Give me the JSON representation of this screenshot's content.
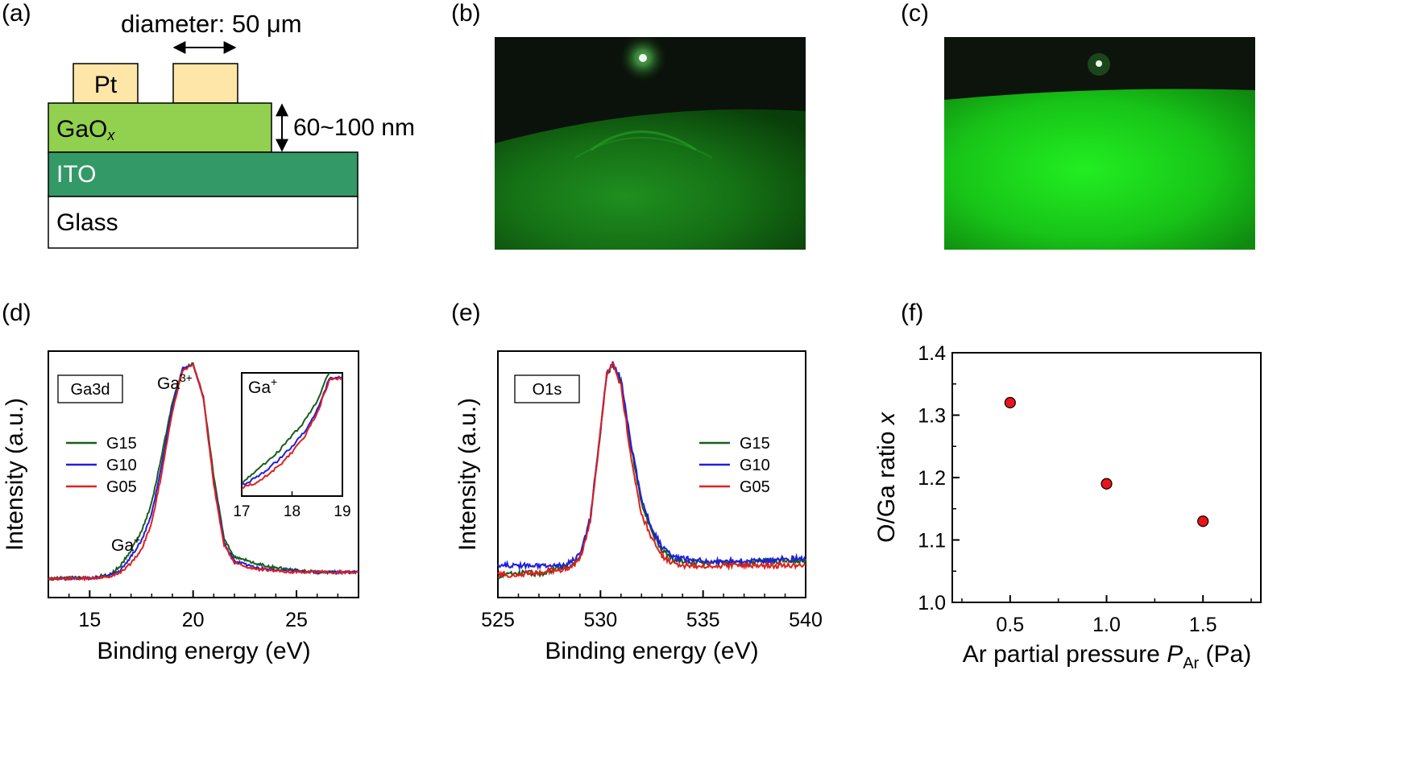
{
  "panel_labels": {
    "a": "(a)",
    "b": "(b)",
    "c": "(c)",
    "d": "(d)",
    "e": "(e)",
    "f": "(f)"
  },
  "schematic": {
    "diameter_label": "diameter: 50 μm",
    "thickness_label": "60~100 nm",
    "layers": {
      "pt": "Pt",
      "gaox_main": "GaO",
      "gaox_sub": "x",
      "ito": "ITO",
      "glass": "Glass"
    },
    "colors": {
      "pt": "#fde6a8",
      "gaox": "#92d050",
      "ito": "#339966",
      "glass": "#ffffff"
    }
  },
  "rheed_images": [
    {
      "panel": "b",
      "style": "dim green diffraction pattern with arcs"
    },
    {
      "panel": "c",
      "style": "bright green diffraction pattern"
    }
  ],
  "chart_data": [
    {
      "panel": "d",
      "type": "line",
      "xlabel": "Binding energy (eV)",
      "ylabel": "Intensity (a.u.)",
      "xlim": [
        13,
        28
      ],
      "xticks": [
        15,
        20,
        25
      ],
      "ylim": [
        0,
        1.1
      ],
      "box_label": "Ga3d",
      "annotations": [
        {
          "main": "Ga",
          "sup": "3+",
          "x": 19.6,
          "y": 1.05
        },
        {
          "main": "Ga",
          "sup": "+",
          "x": 17.5,
          "y": 0.32
        }
      ],
      "series": [
        {
          "name": "G15",
          "color": "#1a5e1a",
          "x": [
            13,
            14,
            15,
            16,
            16.5,
            17,
            17.5,
            18,
            18.5,
            19,
            19.5,
            20,
            20.5,
            21,
            21.5,
            22,
            23,
            24,
            25,
            26,
            27,
            28
          ],
          "y": [
            0.04,
            0.045,
            0.045,
            0.06,
            0.1,
            0.17,
            0.25,
            0.38,
            0.6,
            0.83,
            0.98,
            1.0,
            0.85,
            0.5,
            0.22,
            0.14,
            0.11,
            0.09,
            0.08,
            0.07,
            0.07,
            0.07
          ]
        },
        {
          "name": "G10",
          "color": "#1f1fdd",
          "x": [
            13,
            14,
            15,
            16,
            16.5,
            17,
            17.5,
            18,
            18.5,
            19,
            19.5,
            20,
            20.5,
            21,
            21.5,
            22,
            23,
            24,
            25,
            26,
            27,
            28
          ],
          "y": [
            0.04,
            0.042,
            0.043,
            0.055,
            0.08,
            0.14,
            0.21,
            0.33,
            0.56,
            0.81,
            0.98,
            1.0,
            0.85,
            0.47,
            0.2,
            0.12,
            0.09,
            0.08,
            0.075,
            0.07,
            0.07,
            0.07
          ]
        },
        {
          "name": "G05",
          "color": "#e0201c",
          "x": [
            13,
            14,
            15,
            16,
            16.5,
            17,
            17.5,
            18,
            18.5,
            19,
            19.5,
            20,
            20.5,
            21,
            21.5,
            22,
            23,
            24,
            25,
            26,
            27,
            28
          ],
          "y": [
            0.04,
            0.042,
            0.042,
            0.05,
            0.07,
            0.11,
            0.17,
            0.29,
            0.52,
            0.79,
            0.97,
            1.0,
            0.85,
            0.46,
            0.19,
            0.11,
            0.085,
            0.075,
            0.07,
            0.07,
            0.07,
            0.07
          ]
        }
      ],
      "inset": {
        "title_main": "Ga",
        "title_sup": "+",
        "xlim": [
          17,
          19
        ],
        "xticks": [
          17,
          18,
          19
        ],
        "ylim": [
          0,
          1
        ],
        "series": [
          {
            "name": "G15",
            "x": [
              17,
              17.25,
              17.5,
              17.75,
              18,
              18.25,
              18.5,
              18.75
            ],
            "y": [
              0.05,
              0.13,
              0.23,
              0.33,
              0.45,
              0.58,
              0.76,
              1.02
            ]
          },
          {
            "name": "G10",
            "x": [
              17,
              17.25,
              17.5,
              17.75,
              18,
              18.25,
              18.5,
              18.75
            ],
            "y": [
              0.02,
              0.08,
              0.16,
              0.25,
              0.36,
              0.49,
              0.68,
              0.96
            ]
          },
          {
            "name": "G05",
            "x": [
              17,
              17.25,
              17.5,
              17.75,
              18,
              18.25,
              18.5,
              18.75
            ],
            "y": [
              0.0,
              0.04,
              0.11,
              0.2,
              0.31,
              0.45,
              0.65,
              0.95
            ]
          }
        ]
      }
    },
    {
      "panel": "e",
      "type": "line",
      "xlabel": "Binding energy (eV)",
      "ylabel": "Intensity (a.u.)",
      "xlim": [
        525,
        540
      ],
      "xticks": [
        525,
        530,
        535,
        540
      ],
      "ylim": [
        0,
        1.1
      ],
      "box_label": "O1s",
      "series": [
        {
          "name": "G15",
          "color": "#1a5e1a",
          "x": [
            525,
            526,
            527,
            528,
            528.5,
            529,
            529.5,
            530,
            530.3,
            530.6,
            531,
            531.5,
            532,
            532.5,
            533,
            533.5,
            534,
            535,
            536,
            537,
            538,
            539,
            540
          ],
          "y": [
            0.05,
            0.07,
            0.06,
            0.09,
            0.1,
            0.14,
            0.3,
            0.7,
            0.95,
            1.0,
            0.92,
            0.62,
            0.38,
            0.25,
            0.17,
            0.13,
            0.12,
            0.11,
            0.11,
            0.11,
            0.12,
            0.12,
            0.12
          ]
        },
        {
          "name": "G10",
          "color": "#1f1fdd",
          "x": [
            525,
            526,
            527,
            528,
            528.5,
            529,
            529.5,
            530,
            530.3,
            530.6,
            531,
            531.5,
            532,
            532.5,
            533,
            533.5,
            534,
            535,
            536,
            537,
            538,
            539,
            540
          ],
          "y": [
            0.1,
            0.1,
            0.1,
            0.1,
            0.11,
            0.15,
            0.31,
            0.7,
            0.95,
            1.0,
            0.93,
            0.64,
            0.4,
            0.27,
            0.18,
            0.14,
            0.13,
            0.12,
            0.12,
            0.12,
            0.12,
            0.13,
            0.13
          ]
        },
        {
          "name": "G05",
          "color": "#e0201c",
          "x": [
            525,
            526,
            527,
            528,
            528.5,
            529,
            529.5,
            530,
            530.3,
            530.6,
            531,
            531.5,
            532,
            532.5,
            533,
            533.5,
            534,
            535,
            536,
            537,
            538,
            539,
            540
          ],
          "y": [
            0.06,
            0.06,
            0.07,
            0.08,
            0.09,
            0.13,
            0.29,
            0.7,
            0.96,
            1.0,
            0.9,
            0.58,
            0.33,
            0.22,
            0.14,
            0.11,
            0.1,
            0.1,
            0.1,
            0.1,
            0.1,
            0.1,
            0.1
          ]
        }
      ]
    },
    {
      "panel": "f",
      "type": "scatter",
      "xlabel_main": "Ar partial pressure ",
      "xlabel_italic": "P",
      "xlabel_sub": "Ar",
      "xlabel_tail": " (Pa)",
      "ylabel_main": "O/Ga ratio ",
      "ylabel_italic": "x",
      "xlim": [
        0.2,
        1.8
      ],
      "ylim": [
        1.0,
        1.4
      ],
      "xticks": [
        "0.5",
        "1.0",
        "1.5"
      ],
      "yticks": [
        "1.0",
        "1.1",
        "1.2",
        "1.3",
        "1.4"
      ],
      "marker_color": "#e8141a",
      "points": [
        {
          "x": 0.5,
          "y": 1.32
        },
        {
          "x": 1.0,
          "y": 1.19
        },
        {
          "x": 1.5,
          "y": 1.13
        }
      ]
    }
  ]
}
